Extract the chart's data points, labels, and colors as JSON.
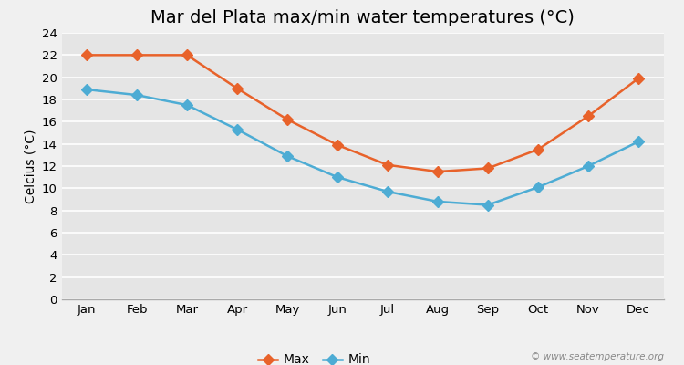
{
  "title": "Mar del Plata max/min water temperatures (°C)",
  "ylabel": "Celcius (°C)",
  "months": [
    "Jan",
    "Feb",
    "Mar",
    "Apr",
    "May",
    "Jun",
    "Jul",
    "Aug",
    "Sep",
    "Oct",
    "Nov",
    "Dec"
  ],
  "max_temps": [
    22.0,
    22.0,
    22.0,
    19.0,
    16.2,
    13.9,
    12.1,
    11.5,
    11.8,
    13.5,
    16.5,
    19.9
  ],
  "min_temps": [
    18.9,
    18.4,
    17.5,
    15.3,
    12.9,
    11.0,
    9.7,
    8.8,
    8.5,
    10.1,
    12.0,
    14.2
  ],
  "max_color": "#e8622a",
  "min_color": "#4dacd4",
  "background_color": "#f0f0f0",
  "plot_bg_color": "#e5e5e5",
  "ylim": [
    0,
    24
  ],
  "yticks": [
    0,
    2,
    4,
    6,
    8,
    10,
    12,
    14,
    16,
    18,
    20,
    22,
    24
  ],
  "legend_labels": [
    "Max",
    "Min"
  ],
  "watermark": "© www.seatemperature.org",
  "title_fontsize": 14,
  "axis_fontsize": 10,
  "tick_fontsize": 9.5,
  "legend_fontsize": 10,
  "marker": "D",
  "markersize": 6,
  "linewidth": 1.8
}
